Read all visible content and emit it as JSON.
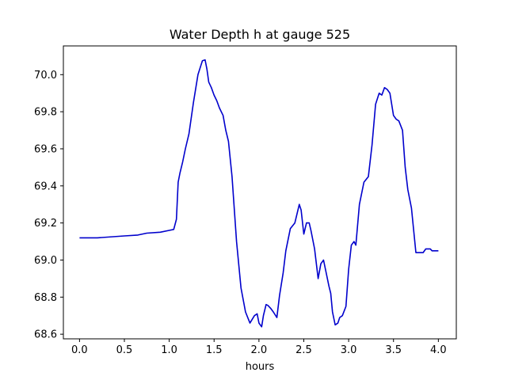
{
  "chart_data": {
    "type": "line",
    "title": "Water Depth h at gauge 525",
    "xlabel": "hours",
    "ylabel": "",
    "xlim": [
      -0.18,
      4.2
    ],
    "ylim": [
      68.575,
      70.155
    ],
    "x_ticks": [
      0.0,
      0.5,
      1.0,
      1.5,
      2.0,
      2.5,
      3.0,
      3.5,
      4.0
    ],
    "x_tick_labels": [
      "0.0",
      "0.5",
      "1.0",
      "1.5",
      "2.0",
      "2.5",
      "3.0",
      "3.5",
      "4.0"
    ],
    "y_ticks": [
      68.6,
      68.8,
      69.0,
      69.2,
      69.4,
      69.6,
      69.8,
      70.0
    ],
    "y_tick_labels": [
      "68.6",
      "68.8",
      "69.0",
      "69.2",
      "69.4",
      "69.6",
      "69.8",
      "70.0"
    ],
    "grid": false,
    "line_color": "#0000cc",
    "series": [
      {
        "name": "",
        "x": [
          0.0,
          0.2,
          0.5,
          0.65,
          0.75,
          0.9,
          1.0,
          1.05,
          1.08,
          1.1,
          1.12,
          1.15,
          1.18,
          1.22,
          1.27,
          1.32,
          1.37,
          1.4,
          1.42,
          1.44,
          1.47,
          1.5,
          1.53,
          1.56,
          1.6,
          1.63,
          1.66,
          1.7,
          1.75,
          1.8,
          1.85,
          1.9,
          1.95,
          1.98,
          2.0,
          2.03,
          2.05,
          2.08,
          2.1,
          2.13,
          2.16,
          2.2,
          2.23,
          2.27,
          2.3,
          2.35,
          2.4,
          2.45,
          2.47,
          2.5,
          2.53,
          2.56,
          2.58,
          2.62,
          2.66,
          2.69,
          2.72,
          2.75,
          2.78,
          2.8,
          2.82,
          2.85,
          2.88,
          2.9,
          2.93,
          2.97,
          3.0,
          3.03,
          3.06,
          3.08,
          3.12,
          3.17,
          3.22,
          3.26,
          3.3,
          3.34,
          3.37,
          3.4,
          3.43,
          3.46,
          3.5,
          3.53,
          3.56,
          3.6,
          3.63,
          3.66,
          3.7,
          3.75,
          3.8,
          3.83,
          3.86,
          3.88,
          3.91,
          3.93,
          3.95,
          4.0
        ],
        "y": [
          69.12,
          69.12,
          69.13,
          69.135,
          69.145,
          69.15,
          69.16,
          69.165,
          69.22,
          69.42,
          69.47,
          69.53,
          69.6,
          69.68,
          69.85,
          70.0,
          70.075,
          70.08,
          70.03,
          69.96,
          69.93,
          69.89,
          69.86,
          69.82,
          69.78,
          69.7,
          69.64,
          69.45,
          69.1,
          68.85,
          68.72,
          68.66,
          68.7,
          68.71,
          68.66,
          68.64,
          68.7,
          68.76,
          68.755,
          68.74,
          68.72,
          68.69,
          68.81,
          68.93,
          69.05,
          69.17,
          69.2,
          69.3,
          69.27,
          69.14,
          69.2,
          69.2,
          69.16,
          69.06,
          68.9,
          68.98,
          69.0,
          68.93,
          68.86,
          68.82,
          68.72,
          68.65,
          68.66,
          68.69,
          68.7,
          68.75,
          68.95,
          69.08,
          69.1,
          69.08,
          69.3,
          69.42,
          69.45,
          69.62,
          69.84,
          69.9,
          69.89,
          69.93,
          69.92,
          69.9,
          69.78,
          69.76,
          69.75,
          69.7,
          69.5,
          69.38,
          69.28,
          69.04,
          69.04,
          69.04,
          69.06,
          69.06,
          69.06,
          69.05,
          69.05,
          69.05
        ]
      }
    ]
  }
}
